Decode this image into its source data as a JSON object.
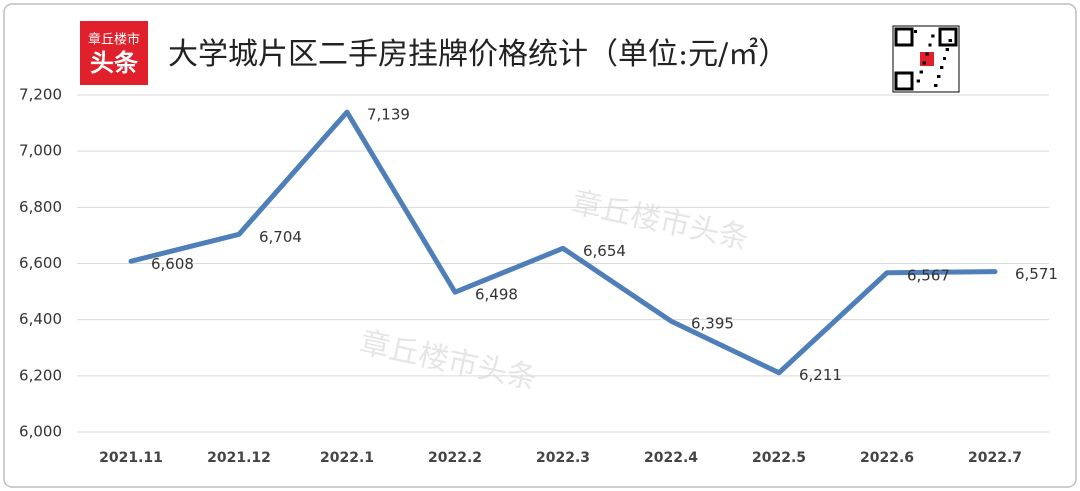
{
  "chart_data": {
    "type": "line",
    "title": "大学城片区二手房挂牌价格统计（单位:元/㎡）",
    "logo": [
      "章丘楼市",
      "头条"
    ],
    "watermark": [
      "章丘楼市头条",
      "章丘楼市头条"
    ],
    "categories": [
      "2021.11",
      "2021.12",
      "2022.1",
      "2022.2",
      "2022.3",
      "2022.4",
      "2022.5",
      "2022.6",
      "2022.7"
    ],
    "values": [
      6608,
      6704,
      7139,
      6498,
      6654,
      6395,
      6211,
      6567,
      6571
    ],
    "value_labels": [
      "6,608",
      "6,704",
      "7,139",
      "6,498",
      "6,654",
      "6,395",
      "6,211",
      "6,567",
      "6,571"
    ],
    "color": "#4f7fb9",
    "ylim": [
      6000,
      7200
    ],
    "yticks": [
      {
        "value": 6000,
        "label": "6,000"
      },
      {
        "value": 6200,
        "label": "6,200"
      },
      {
        "value": 6400,
        "label": "6,400"
      },
      {
        "value": 6600,
        "label": "6,600"
      },
      {
        "value": 6800,
        "label": "6,800"
      },
      {
        "value": 7000,
        "label": "7,000"
      },
      {
        "value": 7200,
        "label": "7,200"
      }
    ],
    "grid": true
  }
}
